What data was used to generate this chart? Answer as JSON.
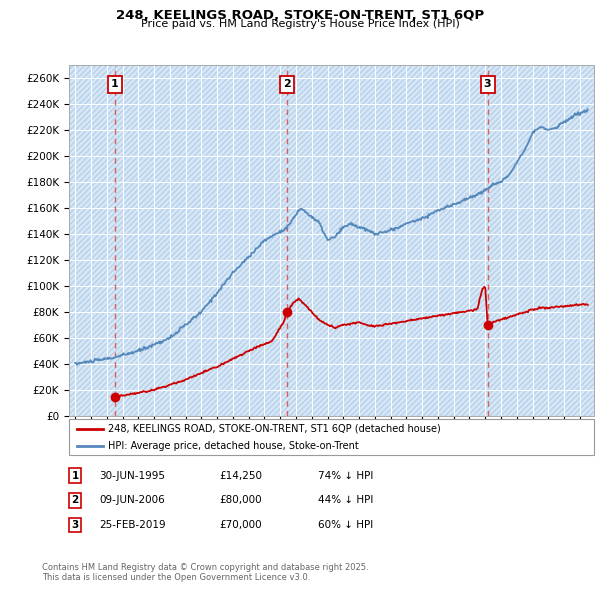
{
  "title": "248, KEELINGS ROAD, STOKE-ON-TRENT, ST1 6QP",
  "subtitle": "Price paid vs. HM Land Registry's House Price Index (HPI)",
  "background_color": "#ffffff",
  "plot_bg_color": "#d6e8f7",
  "hatch_color": "#b8d0e8",
  "grid_color": "#ffffff",
  "sale_dates": [
    1995.49,
    2006.44,
    2019.15
  ],
  "sale_prices": [
    14250,
    80000,
    70000
  ],
  "sale_labels": [
    "1",
    "2",
    "3"
  ],
  "vline_color": "#e05050",
  "red_line_color": "#cc0000",
  "blue_line_color": "#5588bb",
  "ylim": [
    0,
    270000
  ],
  "ytick_step": 20000,
  "xlim_left": 1992.6,
  "xlim_right": 2025.9,
  "legend_labels": [
    "248, KEELINGS ROAD, STOKE-ON-TRENT, ST1 6QP (detached house)",
    "HPI: Average price, detached house, Stoke-on-Trent"
  ],
  "transaction_rows": [
    {
      "num": "1",
      "date": "30-JUN-1995",
      "price": "£14,250",
      "hpi": "74% ↓ HPI"
    },
    {
      "num": "2",
      "date": "09-JUN-2006",
      "price": "£80,000",
      "hpi": "44% ↓ HPI"
    },
    {
      "num": "3",
      "date": "25-FEB-2019",
      "price": "£70,000",
      "hpi": "60% ↓ HPI"
    }
  ],
  "footnote": "Contains HM Land Registry data © Crown copyright and database right 2025.\nThis data is licensed under the Open Government Licence v3.0."
}
